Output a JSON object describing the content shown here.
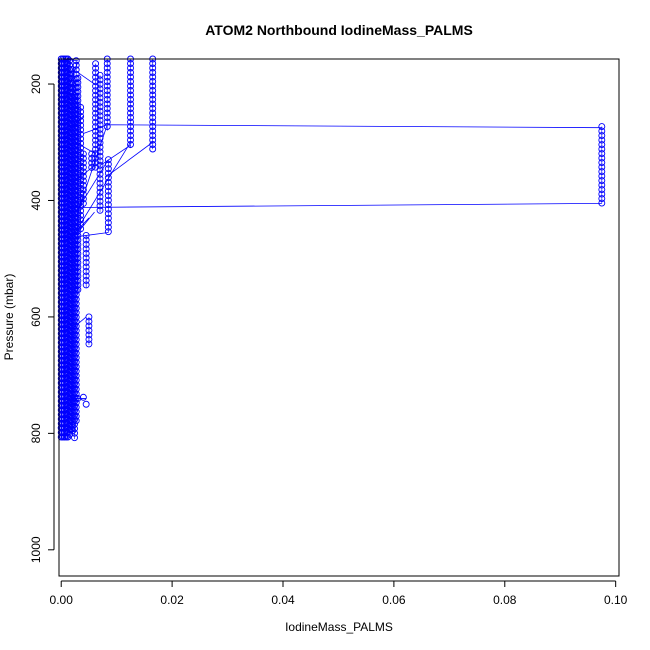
{
  "chart_data": {
    "type": "scatter",
    "title": "ATOM2 Northbound IodineMass_PALMS",
    "xlabel": "IodineMass_PALMS",
    "ylabel": "Pressure (mbar)",
    "xlim": [
      -0.0004,
      0.1006
    ],
    "ylim": [
      1045,
      157
    ],
    "y_reversed": true,
    "grid": false,
    "legend": "none",
    "x_ticks": [
      {
        "value": 0.0,
        "label": "0.00"
      },
      {
        "value": 0.02,
        "label": "0.02"
      },
      {
        "value": 0.04,
        "label": "0.04"
      },
      {
        "value": 0.06,
        "label": "0.06"
      },
      {
        "value": 0.08,
        "label": "0.08"
      },
      {
        "value": 0.1,
        "label": "0.10"
      }
    ],
    "y_ticks": [
      {
        "value": 200,
        "label": "200"
      },
      {
        "value": 400,
        "label": "400"
      },
      {
        "value": 600,
        "label": "600"
      },
      {
        "value": 800,
        "label": "800"
      },
      {
        "value": 1000,
        "label": "1000"
      }
    ],
    "series": [
      {
        "color": "#0000ff",
        "marker": "open-circle",
        "line": true,
        "column_groups": [
          {
            "x": 0.0,
            "y0": 157,
            "y1": 810
          },
          {
            "x": 0.0003,
            "y0": 157,
            "y1": 812
          },
          {
            "x": 0.0006,
            "y0": 157,
            "y1": 812
          },
          {
            "x": 0.0009,
            "y0": 157,
            "y1": 812
          },
          {
            "x": 0.0012,
            "y0": 157,
            "y1": 810
          },
          {
            "x": 0.0015,
            "y0": 160,
            "y1": 808
          },
          {
            "x": 0.0018,
            "y0": 175,
            "y1": 800
          },
          {
            "x": 0.0021,
            "y0": 200,
            "y1": 800
          },
          {
            "x": 0.0024,
            "y0": 220,
            "y1": 810
          },
          {
            "x": 0.0027,
            "y0": 160,
            "y1": 780
          },
          {
            "x": 0.003,
            "y0": 190,
            "y1": 560
          },
          {
            "x": 0.0035,
            "y0": 240,
            "y1": 450
          },
          {
            "x": 0.004,
            "y0": 320,
            "y1": 410
          },
          {
            "x": 0.0045,
            "y0": 460,
            "y1": 550
          },
          {
            "x": 0.005,
            "y0": 600,
            "y1": 648
          },
          {
            "x": 0.0055,
            "y0": 320,
            "y1": 350
          },
          {
            "x": 0.0062,
            "y0": 165,
            "y1": 345
          },
          {
            "x": 0.007,
            "y0": 185,
            "y1": 420
          },
          {
            "x": 0.0083,
            "y0": 157,
            "y1": 280
          },
          {
            "x": 0.0085,
            "y0": 330,
            "y1": 455
          },
          {
            "x": 0.0125,
            "y0": 157,
            "y1": 310
          },
          {
            "x": 0.0165,
            "y0": 157,
            "y1": 312
          },
          {
            "x": 0.0975,
            "y0": 273,
            "y1": 405
          }
        ],
        "points": [
          {
            "x": 0.0,
            "y": 790
          },
          {
            "x": 0.003,
            "y": 740
          },
          {
            "x": 0.004,
            "y": 738
          },
          {
            "x": 0.0045,
            "y": 750
          },
          {
            "x": 0.0022,
            "y": 745
          }
        ],
        "segments": [
          {
            "x0": 0.0002,
            "y0": 157,
            "x1": 0.003,
            "y1": 160
          },
          {
            "x0": 0.003,
            "y0": 162,
            "x1": 0.0005,
            "y1": 230
          },
          {
            "x0": 0.003,
            "y0": 180,
            "x1": 0.006,
            "y1": 200
          },
          {
            "x0": 0.004,
            "y0": 255,
            "x1": 0.0009,
            "y1": 285
          },
          {
            "x0": 0.0062,
            "y0": 320,
            "x1": 0.0008,
            "y1": 290
          },
          {
            "x0": 0.0083,
            "y0": 270,
            "x1": 0.0975,
            "y1": 275
          },
          {
            "x0": 0.0083,
            "y0": 270,
            "x1": 0.003,
            "y1": 420
          },
          {
            "x0": 0.0083,
            "y0": 270,
            "x1": 0.004,
            "y1": 285
          },
          {
            "x0": 0.0125,
            "y0": 305,
            "x1": 0.007,
            "y1": 340
          },
          {
            "x0": 0.0165,
            "y0": 300,
            "x1": 0.008,
            "y1": 360
          },
          {
            "x0": 0.006,
            "y0": 340,
            "x1": 0.002,
            "y1": 370
          },
          {
            "x0": 0.0085,
            "y0": 330,
            "x1": 0.003,
            "y1": 415
          },
          {
            "x0": 0.0125,
            "y0": 300,
            "x1": 0.0035,
            "y1": 440
          },
          {
            "x0": 0.003,
            "y0": 412,
            "x1": 0.0975,
            "y1": 405
          },
          {
            "x0": 0.006,
            "y0": 420,
            "x1": 0.003,
            "y1": 455
          },
          {
            "x0": 0.0085,
            "y0": 455,
            "x1": 0.003,
            "y1": 462
          },
          {
            "x0": 0.005,
            "y0": 430,
            "x1": 0.001,
            "y1": 470
          },
          {
            "x0": 0.0045,
            "y0": 600,
            "x1": 0.002,
            "y1": 620
          },
          {
            "x0": 0.003,
            "y0": 455,
            "x1": 0.0005,
            "y1": 470
          },
          {
            "x0": 0.0,
            "y0": 740,
            "x1": 0.0045,
            "y1": 740
          }
        ]
      }
    ]
  }
}
